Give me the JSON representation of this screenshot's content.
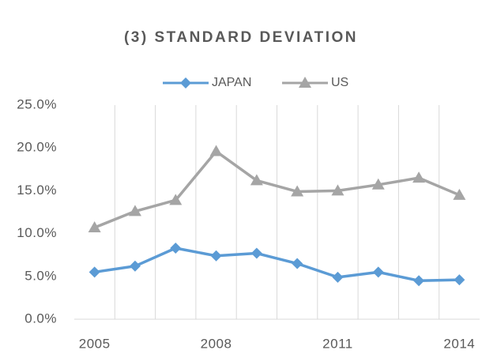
{
  "chart_data": {
    "type": "line",
    "title": "(3) STANDARD DEVIATION",
    "categories": [
      "2005",
      null,
      null,
      "2008",
      null,
      null,
      "2011",
      null,
      null,
      "2014"
    ],
    "series": [
      {
        "name": "JAPAN",
        "color": "#5b9bd5",
        "marker": "diamond",
        "values": [
          5.5,
          6.2,
          8.3,
          7.4,
          7.7,
          6.5,
          4.9,
          5.5,
          4.5,
          4.6
        ]
      },
      {
        "name": "US",
        "color": "#a5a5a5",
        "marker": "triangle",
        "values": [
          10.7,
          12.6,
          13.9,
          19.6,
          16.2,
          14.9,
          15.0,
          15.7,
          16.5,
          14.5
        ]
      }
    ],
    "ylim": [
      0,
      25
    ],
    "yticks": [
      {
        "value": 0,
        "label": "0.0%"
      },
      {
        "value": 5,
        "label": "5.0%"
      },
      {
        "value": 10,
        "label": "10.0%"
      },
      {
        "value": 15,
        "label": "15.0%"
      },
      {
        "value": 20,
        "label": "20.0%"
      },
      {
        "value": 25,
        "label": "25.0%"
      }
    ],
    "grid": "x",
    "legend": "top"
  }
}
